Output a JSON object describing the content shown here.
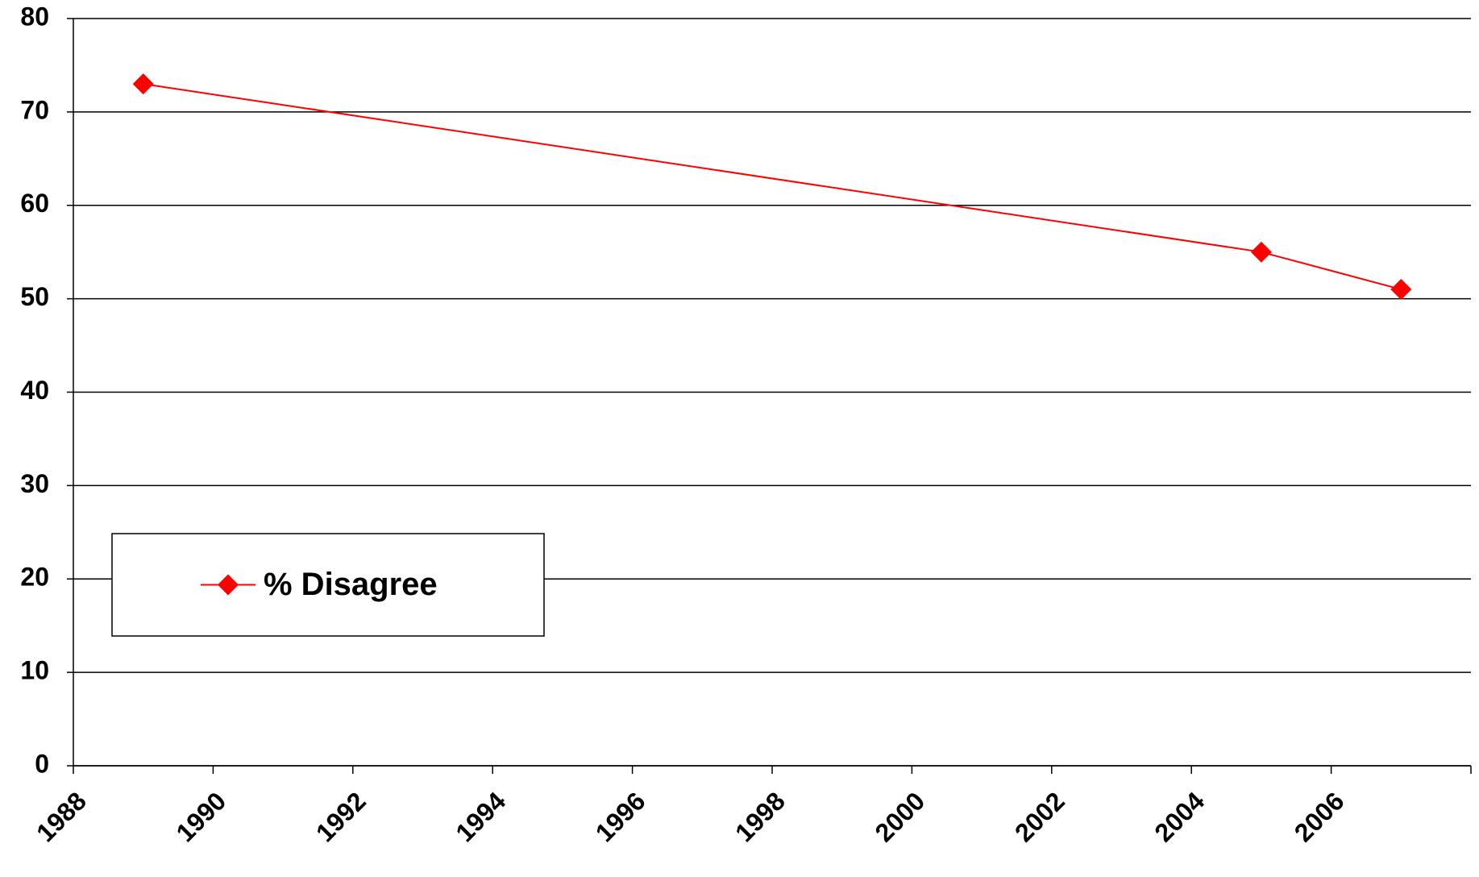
{
  "chart_data": {
    "type": "line",
    "x": [
      1989,
      2005,
      2007
    ],
    "series": [
      {
        "name": "% Disagree",
        "color": "#ff0000",
        "values": [
          73,
          55,
          51
        ]
      }
    ],
    "xlim": [
      1988,
      2008
    ],
    "xticks": [
      1988,
      1990,
      1992,
      1994,
      1996,
      1998,
      2000,
      2002,
      2004,
      2006
    ],
    "ylim": [
      0,
      80
    ],
    "yticks": [
      0,
      10,
      20,
      30,
      40,
      50,
      60,
      70,
      80
    ],
    "grid": true,
    "legend": "center left"
  }
}
